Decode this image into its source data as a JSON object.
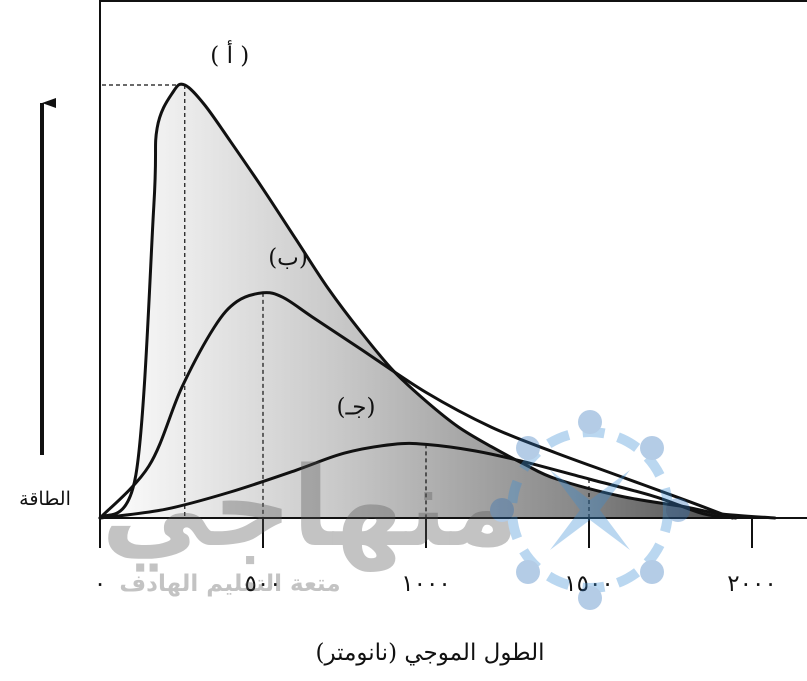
{
  "chart_data": {
    "type": "line",
    "ylabel": "الطاقة",
    "xlabel": "الطول الموجي (نانومتر)",
    "xlim": [
      0,
      2100
    ],
    "ylim": [
      0,
      1
    ],
    "x_ticks": [
      0,
      500,
      1000,
      1500,
      2000
    ],
    "x_tick_labels": [
      "٠",
      "٥٠٠",
      "١٠٠٠",
      "١٥٠٠",
      "٢٠٠٠"
    ],
    "grid": false,
    "series": [
      {
        "name": "( أ )",
        "peak_x": 260,
        "points": [
          [
            0,
            0
          ],
          [
            110,
            0.1
          ],
          [
            165,
            0.72
          ],
          [
            175,
            0.9
          ],
          [
            225,
            0.985
          ],
          [
            260,
            1.0
          ],
          [
            320,
            0.955
          ],
          [
            400,
            0.87
          ],
          [
            500,
            0.76
          ],
          [
            600,
            0.645
          ],
          [
            700,
            0.53
          ],
          [
            800,
            0.43
          ],
          [
            900,
            0.34
          ],
          [
            1000,
            0.27
          ],
          [
            1100,
            0.21
          ],
          [
            1200,
            0.165
          ],
          [
            1300,
            0.125
          ],
          [
            1400,
            0.09
          ],
          [
            1600,
            0.05
          ],
          [
            1800,
            0.025
          ],
          [
            1900,
            0.01
          ],
          [
            2070,
            0
          ]
        ]
      },
      {
        "name": "(ب)",
        "peak_x": 500,
        "points": [
          [
            0,
            0
          ],
          [
            150,
            0.12
          ],
          [
            250,
            0.3
          ],
          [
            350,
            0.44
          ],
          [
            420,
            0.5
          ],
          [
            500,
            0.52
          ],
          [
            560,
            0.51
          ],
          [
            650,
            0.465
          ],
          [
            800,
            0.39
          ],
          [
            1000,
            0.29
          ],
          [
            1200,
            0.21
          ],
          [
            1400,
            0.15
          ],
          [
            1600,
            0.095
          ],
          [
            1800,
            0.04
          ],
          [
            1940,
            0
          ]
        ]
      },
      {
        "name": "(جـ)",
        "peak_x": 1000,
        "points": [
          [
            0,
            0
          ],
          [
            200,
            0.02
          ],
          [
            400,
            0.06
          ],
          [
            600,
            0.11
          ],
          [
            750,
            0.15
          ],
          [
            900,
            0.17
          ],
          [
            1000,
            0.17
          ],
          [
            1150,
            0.155
          ],
          [
            1300,
            0.13
          ],
          [
            1500,
            0.09
          ],
          [
            1700,
            0.05
          ],
          [
            1850,
            0.01
          ],
          [
            1950,
            0
          ]
        ]
      }
    ],
    "watermark": {
      "text_main": "منهاجي",
      "text_sub": "متعة التعليم الهادف"
    }
  }
}
